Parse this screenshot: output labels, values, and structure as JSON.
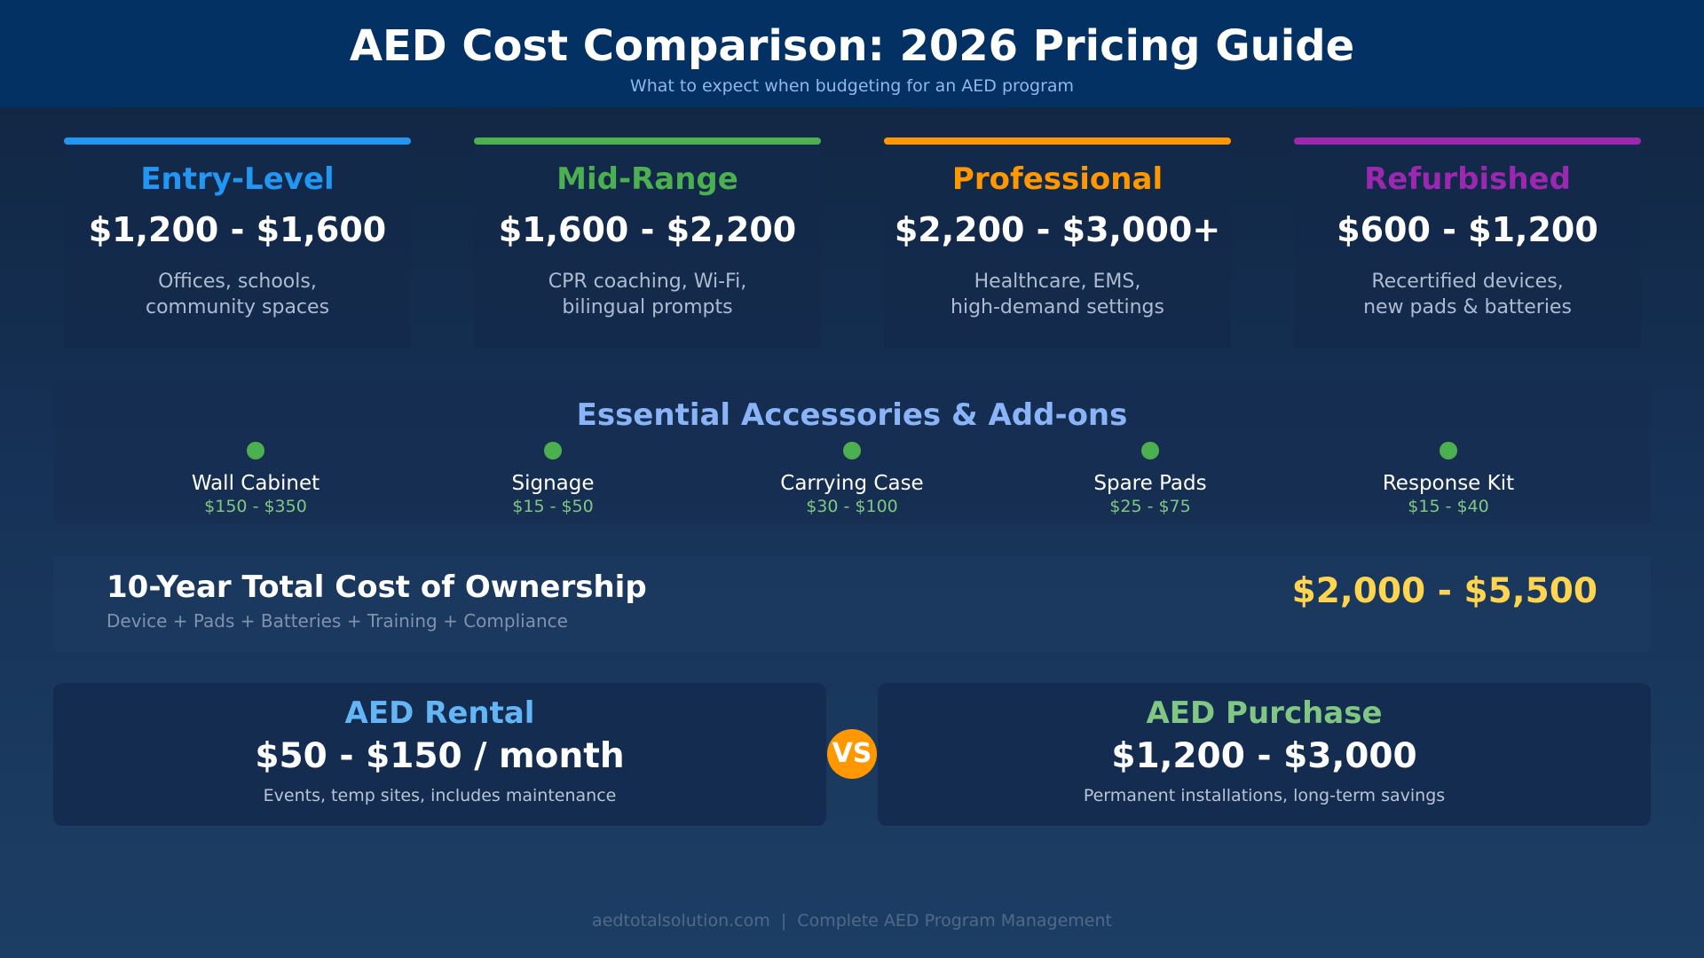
{
  "header": {
    "title": "AED Cost Comparison: 2026 Pricing Guide",
    "subtitle": "What to expect when budgeting for an AED program"
  },
  "tiers": [
    {
      "name": "Entry-Level",
      "price": "$1,200 - $1,600",
      "desc1": "Offices, schools,",
      "desc2": "community spaces",
      "color": "#2196f3"
    },
    {
      "name": "Mid-Range",
      "price": "$1,600 - $2,200",
      "desc1": "CPR coaching, Wi-Fi,",
      "desc2": "bilingual prompts",
      "color": "#4caf50"
    },
    {
      "name": "Professional",
      "price": "$2,200 - $3,000+",
      "desc1": "Healthcare, EMS,",
      "desc2": "high-demand settings",
      "color": "#ff9800"
    },
    {
      "name": "Refurbished",
      "price": "$600 - $1,200",
      "desc1": "Recertified devices,",
      "desc2": "new pads & batteries",
      "color": "#9c27b0"
    }
  ],
  "accessories": {
    "heading": "Essential Accessories & Add-ons",
    "items": [
      {
        "name": "Wall Cabinet",
        "price": "$150 - $350"
      },
      {
        "name": "Signage",
        "price": "$15 - $50"
      },
      {
        "name": "Carrying Case",
        "price": "$30 - $100"
      },
      {
        "name": "Spare Pads",
        "price": "$25 - $75"
      },
      {
        "name": "Response Kit",
        "price": "$15 - $40"
      }
    ]
  },
  "tco": {
    "title": "10-Year Total Cost of Ownership",
    "subtitle": "Device + Pads + Batteries + Training + Compliance",
    "value": "$2,000 - $5,500"
  },
  "rental": {
    "title": "AED Rental",
    "price": "$50 - $150 / month",
    "desc": "Events, temp sites, includes maintenance",
    "color": "#64b5f6"
  },
  "purchase": {
    "title": "AED Purchase",
    "price": "$1,200 - $3,000",
    "desc": "Permanent installations, long-term savings",
    "color": "#81c784"
  },
  "vs": "VS",
  "footer": "aedtotalsolution.com  |  Complete AED Program Management"
}
